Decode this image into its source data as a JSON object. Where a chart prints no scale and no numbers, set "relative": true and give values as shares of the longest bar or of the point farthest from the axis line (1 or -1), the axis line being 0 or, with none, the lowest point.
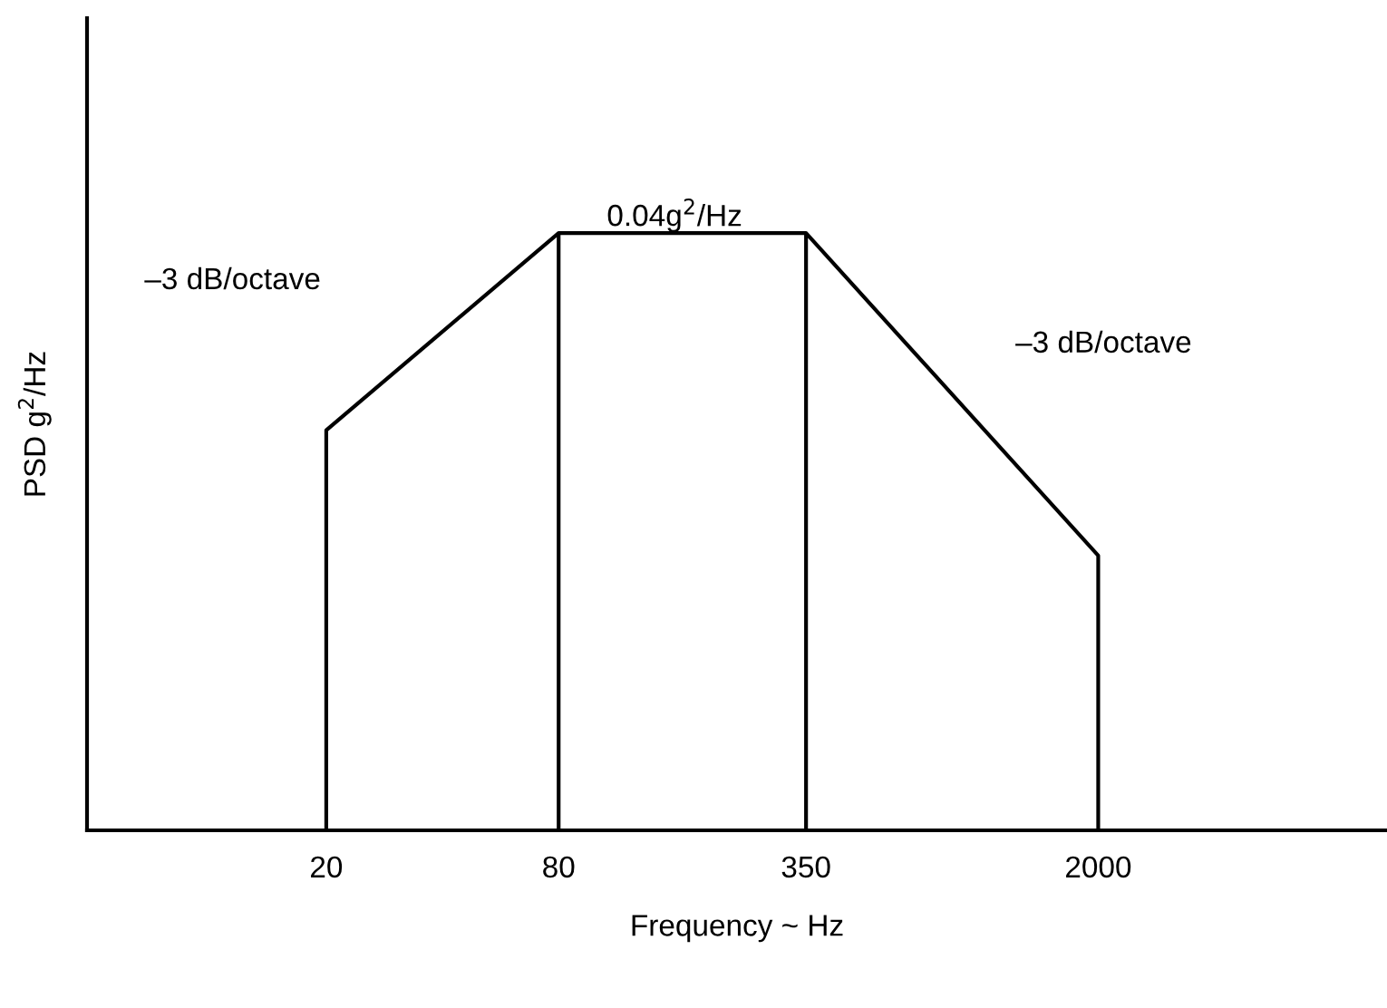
{
  "chart_data": {
    "type": "line",
    "relative": true,
    "log": "x",
    "xlabel": "Frequency ~ Hz",
    "ylabel": "PSD g$^{2}$/Hz",
    "x": [
      20,
      20,
      80,
      80,
      80,
      350,
      350,
      350,
      2000,
      2000
    ],
    "series": [
      {
        "color": "#000000",
        "values": [
          0,
          0.67,
          1,
          0,
          1,
          1,
          0,
          1,
          0.46,
          0
        ]
      }
    ],
    "xlim": [
      4.8,
      11200
    ],
    "xticks": [
      20,
      80,
      350,
      2000
    ],
    "annotations": [
      "0.04g$^{2}$/Hz",
      "–3 dB/octave",
      "–3 dB/octave"
    ],
    "grid": false,
    "marker": "none",
    "line_style": "solid"
  }
}
